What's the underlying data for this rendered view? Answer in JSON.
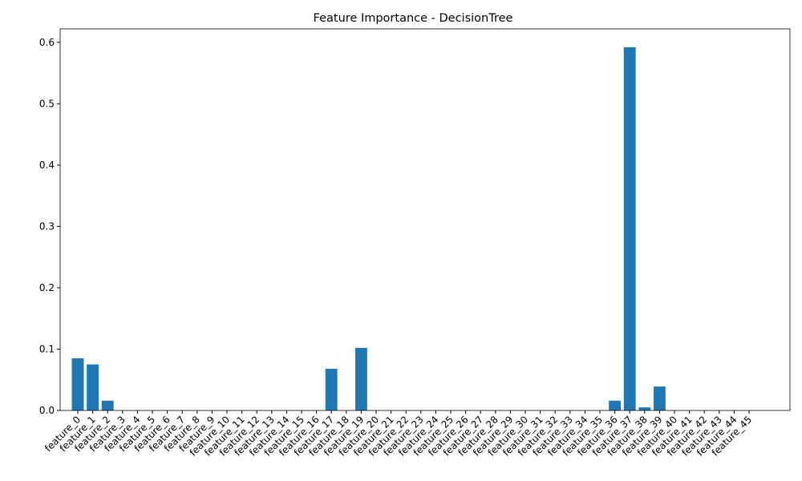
{
  "chart_data": {
    "type": "bar",
    "title": "Feature Importance - DecisionTree",
    "categories": [
      "feature_0",
      "feature_1",
      "feature_2",
      "feature_3",
      "feature_4",
      "feature_5",
      "feature_6",
      "feature_7",
      "feature_8",
      "feature_9",
      "feature_10",
      "feature_11",
      "feature_12",
      "feature_13",
      "feature_14",
      "feature_15",
      "feature_16",
      "feature_17",
      "feature_18",
      "feature_19",
      "feature_20",
      "feature_21",
      "feature_22",
      "feature_23",
      "feature_24",
      "feature_25",
      "feature_26",
      "feature_27",
      "feature_28",
      "feature_29",
      "feature_30",
      "feature_31",
      "feature_32",
      "feature_33",
      "feature_34",
      "feature_35",
      "feature_36",
      "feature_37",
      "feature_38",
      "feature_39",
      "feature_40",
      "feature_41",
      "feature_42",
      "feature_43",
      "feature_44",
      "feature_45"
    ],
    "values": [
      0.085,
      0.075,
      0.016,
      0,
      0,
      0,
      0,
      0,
      0,
      0,
      0,
      0,
      0,
      0,
      0,
      0,
      0,
      0.068,
      0,
      0.102,
      0,
      0,
      0,
      0,
      0,
      0,
      0,
      0,
      0,
      0,
      0,
      0,
      0,
      0,
      0,
      0,
      0.016,
      0.592,
      0.005,
      0.039,
      0,
      0,
      0,
      0,
      0,
      0
    ],
    "color": "#1f77b4",
    "ylim": [
      0,
      0.622
    ],
    "yticks": [
      {
        "value": 0,
        "label": "0.0"
      },
      0.1,
      0.2,
      0.3,
      0.4,
      0.5,
      0.6
    ],
    "grid": false
  }
}
